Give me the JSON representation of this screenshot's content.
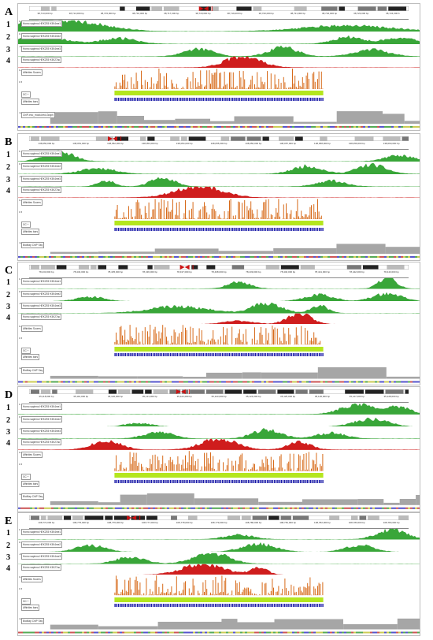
{
  "panels": [
    {
      "letter": "A",
      "coords": [
        "38,713,000 bp",
        "38,714,000 bp",
        "38,715,000 bp",
        "38,716,000 bp",
        "38,717,000 bp",
        "38,718,000 bp",
        "38,719,000 bp",
        "38,720,000 bp",
        "38,721,000 bp",
        "38,722,000 bp",
        "38,723,000 bp",
        "38,724,000 b"
      ],
      "track_labels": [
        "Homo sapiens HEK293 H3K4me1",
        "Homo sapiens HEK293 H3K4me2",
        "Homo sapiens HEK293 H3K4me3",
        "Homo sapiens HEK293 H3K27ac",
        "Affinities Scores",
        "GC +",
        "Affinities bars",
        "ChIP-exo_mock.bed-Graph"
      ],
      "scales": [
        "1.11",
        "0.1",
        "-0.5",
        "1.8",
        "1.5",
        "max"
      ]
    },
    {
      "letter": "B",
      "coords": [
        "138,050,000 bp",
        "138,051,000 bp",
        "138,052,000 bp",
        "138,053,000 bp",
        "138,054,000 bp",
        "138,055,000 bp",
        "138,056,000 bp",
        "138,057,000 bp",
        "138,058,000 bp",
        "138,059,000 bp",
        "138,060,000 bp"
      ],
      "track_labels": [
        "Homo sapiens HEK293 H3K4me1",
        "Homo sapiens HEK293 H3K4me2",
        "Homo sapiens HEK293 H3K4me3",
        "Homo sapiens HEK293 H3K27ac",
        "Affinities Scores",
        "GC +",
        "Affinities bars",
        "BioMap ChIP Seq"
      ],
      "scales": [
        "1.11",
        "0.1",
        "-0.5",
        "1.8",
        "1.5",
        "max"
      ]
    },
    {
      "letter": "C",
      "coords": [
        "78,433,000 bp",
        "78,434,000 bp",
        "78,435,000 bp",
        "78,436,000 bp",
        "78,437,000 bp",
        "78,438,000 bp",
        "78,439,000 bp",
        "78,440,000 bp",
        "78,441,000 bp",
        "78,442,000 bp",
        "78,443,000 bp"
      ],
      "track_labels": [
        "Homo sapiens HEK293 H3K4me1",
        "Homo sapiens HEK293 H3K4me2",
        "Homo sapiens HEK293 H3K4me3",
        "Homo sapiens HEK293 H3K27ac",
        "Affinities Scores",
        "GC +",
        "Affinities bars",
        "BioMap ChIP Seq"
      ],
      "scales": [
        "1.11",
        "0.1",
        "-0.5",
        "1.8",
        "1.5",
        "max"
      ]
    },
    {
      "letter": "D",
      "coords": [
        "35,118,000 bp",
        "35,119,000 bp",
        "35,120,000 bp",
        "35,121,000 bp",
        "35,122,000 bp",
        "35,123,000 bp",
        "35,124,000 bp",
        "35,125,000 bp",
        "35,126,000 bp",
        "35,127,000 bp",
        "35,128,000 bp"
      ],
      "track_labels": [
        "Homo sapiens HEK293 H3K4me1",
        "Homo sapiens HEK293 H3K4me2",
        "Homo sapiens HEK293 H3K4me3",
        "Homo sapiens HEK293 H3K27ac",
        "Affinities Scores",
        "GC +",
        "Affinities bars",
        "BioMap ChIP Seq"
      ],
      "scales": [
        "1.11",
        "0.1",
        "-0.5",
        "1.8",
        "1.5",
        "max"
      ]
    },
    {
      "letter": "E",
      "coords": [
        "108,774,000 bp",
        "108,775,000 bp",
        "108,776,000 bp",
        "108,777,000 bp",
        "108,778,000 bp",
        "108,779,000 bp",
        "108,780,000 bp",
        "108,781,000 bp",
        "108,782,000 bp",
        "108,783,000 bp",
        "108,784,000 bp"
      ],
      "track_labels": [
        "Homo sapiens HEK293 H3K4me1",
        "Homo sapiens HEK293 H3K4me2",
        "Homo sapiens HEK293 H3K4me3",
        "Homo sapiens HEK293 H3K27ac",
        "Affinities Scores",
        "GC +",
        "Affinities bars",
        "BioMap ChIP Seq"
      ],
      "scales": [
        "1.11",
        "0.1",
        "-0.5",
        "1.8",
        "1.5",
        "max"
      ]
    }
  ],
  "track_numbers": [
    "1",
    "2",
    "3",
    "4"
  ],
  "colors": {
    "histone": "#2ea12e",
    "h3k27ac": "#cc1111",
    "affinity": "#d76a1a",
    "gc": "#b4e61e",
    "bars": "#1a1aa8",
    "chip": "#a6a6a6",
    "ideogram_dark": "#222222",
    "centromere": "#cc1111"
  }
}
